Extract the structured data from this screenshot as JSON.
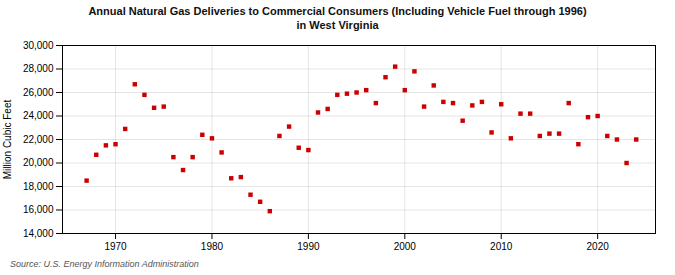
{
  "chart_data": {
    "type": "scatter",
    "title": "Annual Natural Gas Deliveries to Commercial Consumers (Including Vehicle Fuel through 1996)\nin West Virginia",
    "ylabel": "Million Cubic Feet",
    "source": "Source: U.S. Energy Information Administration",
    "color": "#cc0000",
    "marker": "square",
    "grid": true,
    "xlim": [
      1964.5,
      2026
    ],
    "xticks": [
      1970,
      1980,
      1990,
      2000,
      2010,
      2020
    ],
    "ylim": [
      14000,
      30000
    ],
    "yticks": [
      {
        "value": 14000,
        "label": "14,000"
      },
      {
        "value": 16000,
        "label": "16,000"
      },
      {
        "value": 18000,
        "label": "18,000"
      },
      {
        "value": 20000,
        "label": "20,000"
      },
      {
        "value": 22000,
        "label": "22,000"
      },
      {
        "value": 24000,
        "label": "24,000"
      },
      {
        "value": 26000,
        "label": "26,000"
      },
      {
        "value": 28000,
        "label": "28,000"
      },
      {
        "value": 30000,
        "label": "30,000"
      }
    ],
    "x": [
      1967,
      1968,
      1969,
      1970,
      1971,
      1972,
      1973,
      1974,
      1975,
      1976,
      1977,
      1978,
      1979,
      1980,
      1981,
      1982,
      1983,
      1984,
      1985,
      1986,
      1987,
      1988,
      1989,
      1990,
      1991,
      1992,
      1993,
      1994,
      1995,
      1996,
      1997,
      1998,
      1999,
      2000,
      2001,
      2002,
      2003,
      2004,
      2005,
      2006,
      2007,
      2008,
      2009,
      2010,
      2011,
      2012,
      2013,
      2014,
      2015,
      2016,
      2017,
      2018,
      2019,
      2020,
      2021,
      2022,
      2023,
      2024
    ],
    "values": [
      18500,
      20700,
      21500,
      21600,
      22900,
      26700,
      25800,
      24700,
      24800,
      20500,
      19400,
      20500,
      22400,
      22100,
      20900,
      18700,
      18800,
      17300,
      16700,
      15900,
      22300,
      23100,
      21300,
      21100,
      24300,
      24600,
      25800,
      25900,
      26000,
      26200,
      25100,
      27300,
      28200,
      26200,
      27800,
      24800,
      26600,
      25200,
      25100,
      23600,
      24900,
      25200,
      22600,
      25000,
      22100,
      24200,
      24200,
      22300,
      22500,
      22500,
      25100,
      21600,
      23900,
      24000,
      22300,
      22000,
      20000,
      22000
    ]
  }
}
